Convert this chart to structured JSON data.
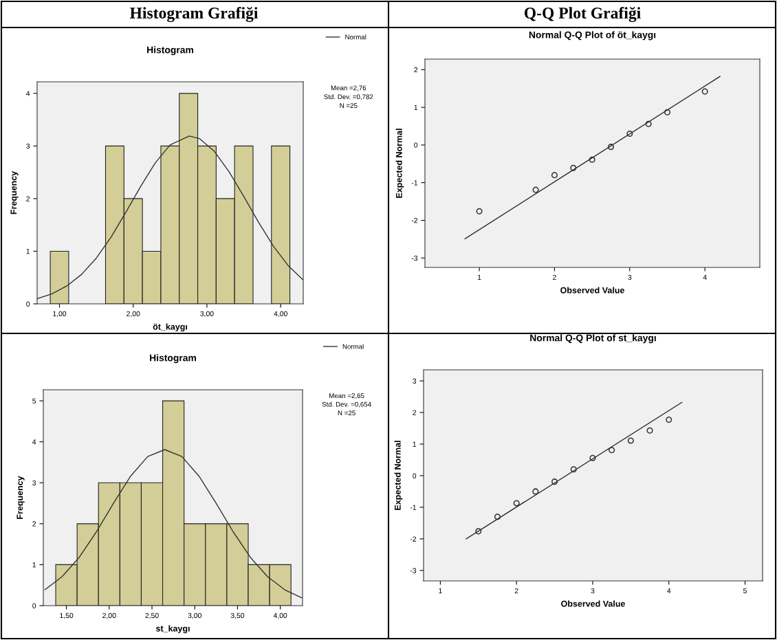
{
  "chart_data": [
    {
      "type": "histogram",
      "title": "Histogram Grafiği",
      "subtitle": "Histogram",
      "xlabel": "öt_kaygı",
      "ylabel": "Frequency",
      "bins": [
        0.875,
        1.125,
        1.375,
        1.625,
        1.875,
        2.125,
        2.375,
        2.625,
        2.875,
        3.125,
        3.375,
        3.625,
        3.875,
        4.125
      ],
      "series": [
        {
          "color": "#d3ce97",
          "values": [
            1,
            0,
            0,
            3,
            2,
            1,
            3,
            4,
            3,
            2,
            3,
            0,
            3
          ]
        },
        {
          "type": "line",
          "name": "Normal",
          "color": "#333333",
          "x": [
            0.7,
            0.9,
            1.1,
            1.3,
            1.5,
            1.7,
            1.9,
            2.1,
            2.3,
            2.5,
            2.76,
            2.9,
            3.1,
            3.3,
            3.5,
            3.7,
            3.9,
            4.1,
            4.3
          ],
          "values": [
            0.1,
            0.19,
            0.34,
            0.56,
            0.87,
            1.27,
            1.74,
            2.23,
            2.68,
            3.02,
            3.19,
            3.14,
            2.9,
            2.51,
            2.04,
            1.55,
            1.1,
            0.73,
            0.46
          ]
        }
      ],
      "xlim": [
        0.697,
        4.306
      ],
      "ylim": [
        0,
        4.22
      ],
      "xticks": [
        {
          "value": 1,
          "label": "1,00"
        },
        {
          "value": 2,
          "label": "2,00"
        },
        {
          "value": 3,
          "label": "3,00"
        },
        {
          "value": 4,
          "label": "4,00"
        }
      ],
      "yticks": [
        0,
        1,
        2,
        3,
        4
      ],
      "annotations": [
        "Mean =2,76",
        "Std. Dev. =0,782",
        "N =25"
      ],
      "legend": "top right"
    },
    {
      "type": "scatter",
      "title": "Q-Q Plot Grafiği",
      "subtitle": "Normal Q-Q Plot of öt_kaygı",
      "xlabel": "Observed Value",
      "ylabel": "Expected Normal",
      "marker": "circle",
      "series": [
        {
          "color": "#333333",
          "x": [
            1,
            1.75,
            2,
            2.25,
            2.5,
            2.75,
            3,
            3.25,
            3.5,
            4
          ],
          "values": [
            -1.76,
            -1.19,
            -0.8,
            -0.61,
            -0.39,
            -0.05,
            0.3,
            0.56,
            0.87,
            1.42
          ]
        },
        {
          "type": "line",
          "marker": "none",
          "color": "#222222",
          "x": [
            0.81,
            4.2
          ],
          "values": [
            -2.49,
            1.82
          ]
        }
      ],
      "xlim": [
        0.277,
        4.73
      ],
      "ylim": [
        -3.25,
        2.28
      ],
      "xticks": [
        1,
        2,
        3,
        4
      ],
      "yticks": [
        -3,
        -2,
        -1,
        0,
        1,
        2
      ]
    },
    {
      "type": "histogram",
      "subtitle": "Histogram",
      "xlabel": "st_kaygı",
      "ylabel": "Frequency",
      "bins": [
        1.375,
        1.625,
        1.875,
        2.125,
        2.375,
        2.625,
        2.875,
        3.125,
        3.375,
        3.625,
        3.875,
        4.125
      ],
      "series": [
        {
          "color": "#d3ce97",
          "values": [
            1,
            2,
            3,
            3,
            3,
            5,
            2,
            2,
            2,
            1,
            1
          ]
        },
        {
          "type": "line",
          "name": "Normal",
          "color": "#333333",
          "x": [
            1.25,
            1.45,
            1.65,
            1.85,
            2.05,
            2.25,
            2.45,
            2.65,
            2.85,
            3.05,
            3.25,
            3.45,
            3.65,
            3.85,
            4.05,
            4.25
          ],
          "values": [
            0.39,
            0.71,
            1.18,
            1.8,
            2.5,
            3.16,
            3.64,
            3.81,
            3.64,
            3.16,
            2.5,
            1.8,
            1.18,
            0.71,
            0.39,
            0.19
          ]
        }
      ],
      "xlim": [
        1.23,
        4.26
      ],
      "ylim": [
        0,
        5.27
      ],
      "xticks": [
        {
          "value": 1.5,
          "label": "1,50"
        },
        {
          "value": 2,
          "label": "2,00"
        },
        {
          "value": 2.5,
          "label": "2,50"
        },
        {
          "value": 3,
          "label": "3,00"
        },
        {
          "value": 3.5,
          "label": "3,50"
        },
        {
          "value": 4,
          "label": "4,00"
        }
      ],
      "yticks": [
        0,
        1,
        2,
        3,
        4,
        5
      ],
      "annotations": [
        "Mean =2,65",
        "Std. Dev. =0,654",
        "N =25"
      ],
      "legend": "top right"
    },
    {
      "type": "scatter",
      "subtitle": "Normal Q-Q Plot of st_kaygı",
      "xlabel": "Observed Value",
      "ylabel": "Expected Normal",
      "marker": "circle",
      "series": [
        {
          "color": "#333333",
          "x": [
            1.5,
            1.75,
            2,
            2.25,
            2.5,
            2.75,
            3,
            3.25,
            3.5,
            3.75,
            4
          ],
          "values": [
            -1.76,
            -1.3,
            -0.87,
            -0.5,
            -0.19,
            0.2,
            0.56,
            0.81,
            1.11,
            1.43,
            1.77
          ]
        },
        {
          "type": "line",
          "marker": "none",
          "color": "#222222",
          "x": [
            1.34,
            4.17
          ],
          "values": [
            -2.0,
            2.32
          ]
        }
      ],
      "xlim": [
        0.78,
        5.23
      ],
      "ylim": [
        -3.33,
        3.35
      ],
      "xticks": [
        1,
        2,
        3,
        4,
        5
      ],
      "yticks": [
        -3,
        -2,
        -1,
        0,
        1,
        2,
        3
      ]
    }
  ]
}
